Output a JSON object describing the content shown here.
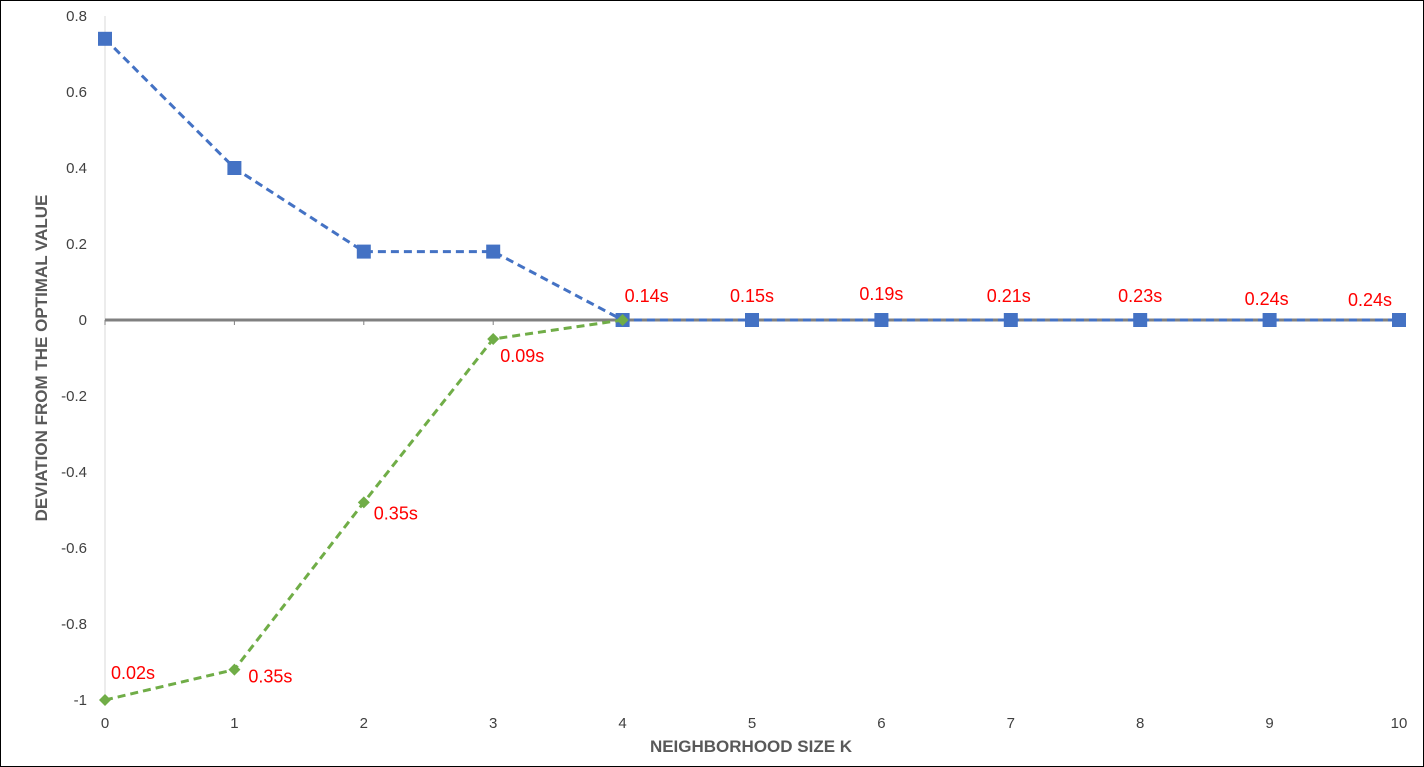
{
  "chart_data": {
    "type": "line",
    "title": "",
    "xlabel": "NEIGHBORHOOD SIZE K",
    "ylabel": "DEVIATION FROM THE OPTIMAL VALUE",
    "xlim": [
      0,
      10
    ],
    "ylim": [
      -1,
      0.8
    ],
    "x_ticks": [
      "0",
      "1",
      "2",
      "3",
      "4",
      "5",
      "6",
      "7",
      "8",
      "9",
      "10"
    ],
    "y_ticks": [
      "0.8",
      "0.6",
      "0.4",
      "0.2",
      "0",
      "-0.2",
      "-0.4",
      "-0.6",
      "-0.8",
      "-1"
    ],
    "grid": false,
    "legend": "none",
    "series": [
      {
        "marker": "square",
        "line_style": "dashed",
        "color": "#4472C4",
        "x": [
          0,
          1,
          2,
          3,
          4,
          5,
          6,
          7,
          8,
          9,
          10
        ],
        "values": [
          0.74,
          0.4,
          0.18,
          0.18,
          0,
          0,
          0,
          0,
          0,
          0,
          0
        ]
      },
      {
        "marker": "diamond",
        "line_style": "dashed",
        "color": "#70AD47",
        "x": [
          0,
          1,
          2,
          3,
          4
        ],
        "values": [
          -1.0,
          -0.92,
          -0.48,
          -0.05,
          0
        ]
      }
    ],
    "annotations": [
      {
        "x": 0,
        "y": -1.0,
        "text": "0.02s"
      },
      {
        "x": 1,
        "y": -0.92,
        "text": "0.35s"
      },
      {
        "x": 2,
        "y": -0.48,
        "text": "0.35s"
      },
      {
        "x": 3,
        "y": -0.05,
        "text": "0.09s"
      },
      {
        "x": 4,
        "y": 0,
        "text": "0.14s"
      },
      {
        "x": 5,
        "y": 0,
        "text": "0.15s"
      },
      {
        "x": 6,
        "y": 0,
        "text": "0.19s"
      },
      {
        "x": 7,
        "y": 0,
        "text": "0.21s"
      },
      {
        "x": 8,
        "y": 0,
        "text": "0.23s"
      },
      {
        "x": 9,
        "y": 0,
        "text": "0.24s"
      },
      {
        "x": 10,
        "y": 0,
        "text": "0.24s"
      }
    ],
    "annotation_color": "#FF0000",
    "zero_line_color": "#808080",
    "axis_color": "#D9D9D9"
  }
}
